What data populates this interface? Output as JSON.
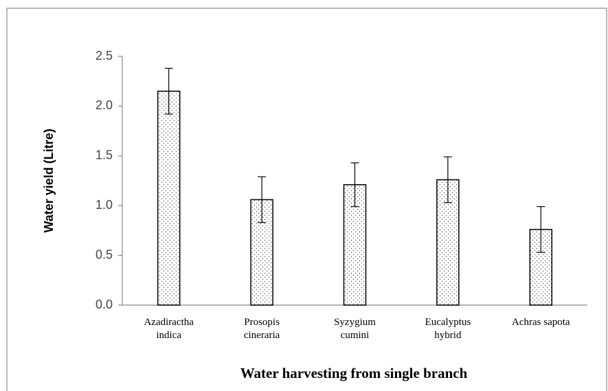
{
  "chart_data": {
    "type": "bar",
    "xlabel": "Water harvesting from single branch",
    "ylabel": "Water yield (Litre)",
    "categories": [
      "Azadiractha indica",
      "Prosopis cineraria",
      "Syzygium cumini",
      "Eucalyptus hybrid",
      "Achras sapota"
    ],
    "values": [
      2.15,
      1.06,
      1.21,
      1.26,
      0.76
    ],
    "errors": [
      0.23,
      0.23,
      0.22,
      0.23,
      0.23
    ],
    "color": "#ffffff",
    "ylim": [
      0,
      2.5
    ],
    "yticks": [
      {
        "value": 0,
        "label": "0.0"
      },
      {
        "value": 0.5,
        "label": "0.5"
      },
      {
        "value": 1,
        "label": "1.0"
      },
      {
        "value": 1.5,
        "label": "1.5"
      },
      {
        "value": 2,
        "label": "2.0"
      },
      {
        "value": 2.5,
        "label": "2.5"
      }
    ],
    "grid": false
  }
}
